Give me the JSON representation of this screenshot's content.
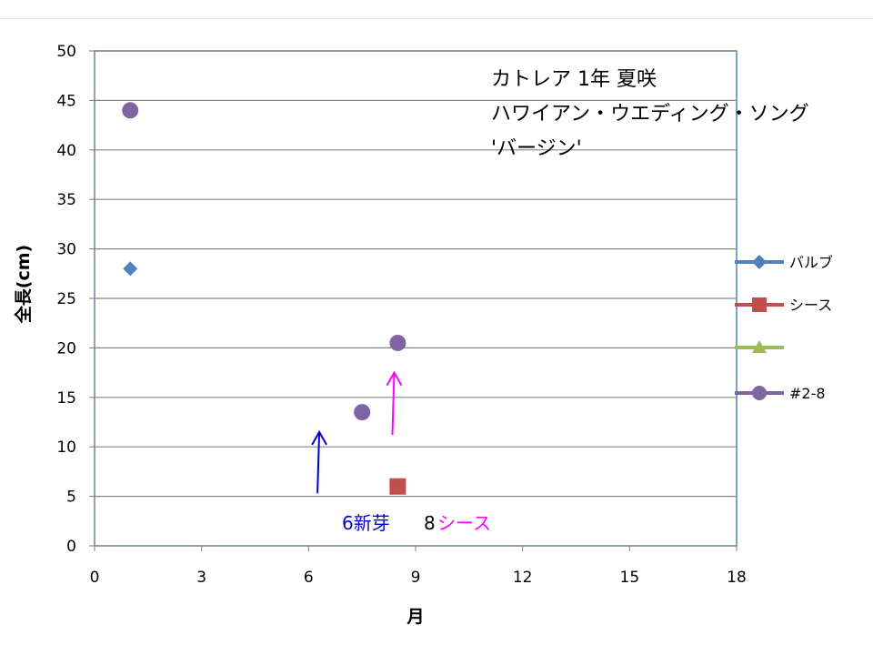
{
  "chart_data": {
    "type": "scatter",
    "title_lines": [
      "カトレア 1年 夏咲",
      "ハワイアン・ウエディング・ソング",
      "'バージン'"
    ],
    "xlabel": "月",
    "ylabel": "全長(cm)",
    "xlim": [
      0,
      18
    ],
    "ylim": [
      0,
      50
    ],
    "x_ticks": [
      0,
      3,
      6,
      9,
      12,
      15,
      18
    ],
    "y_ticks": [
      0,
      5,
      10,
      15,
      20,
      25,
      30,
      35,
      40,
      45,
      50
    ],
    "grid": "horizontal",
    "legend_position": "right",
    "series": [
      {
        "name": "バルブ",
        "color": "#4f81bd",
        "marker": "diamond",
        "points": [
          [
            1.0,
            28
          ]
        ]
      },
      {
        "name": "シース",
        "color": "#c0504d",
        "marker": "square",
        "points": [
          [
            8.5,
            6
          ]
        ]
      },
      {
        "name": "",
        "color": "#9bbb59",
        "marker": "triangle",
        "points": []
      },
      {
        "name": "#2-8",
        "color": "#8064a2",
        "marker": "circle",
        "points": [
          [
            1.0,
            44
          ],
          [
            7.5,
            13.5
          ],
          [
            8.5,
            20.5
          ]
        ]
      }
    ],
    "annotations": {
      "new_bud": {
        "text": "6新芽",
        "color": "#0000cc",
        "arrow_x": 6.3,
        "arrow_from_y": 5.3,
        "arrow_to_y": 11.5
      },
      "sheath_num": {
        "text": "8",
        "color": "#000000"
      },
      "sheath": {
        "text": "シース",
        "color": "#ff00ff",
        "arrow_x": 8.4,
        "arrow_from_y": 11.2,
        "arrow_to_y": 17.5
      }
    }
  }
}
